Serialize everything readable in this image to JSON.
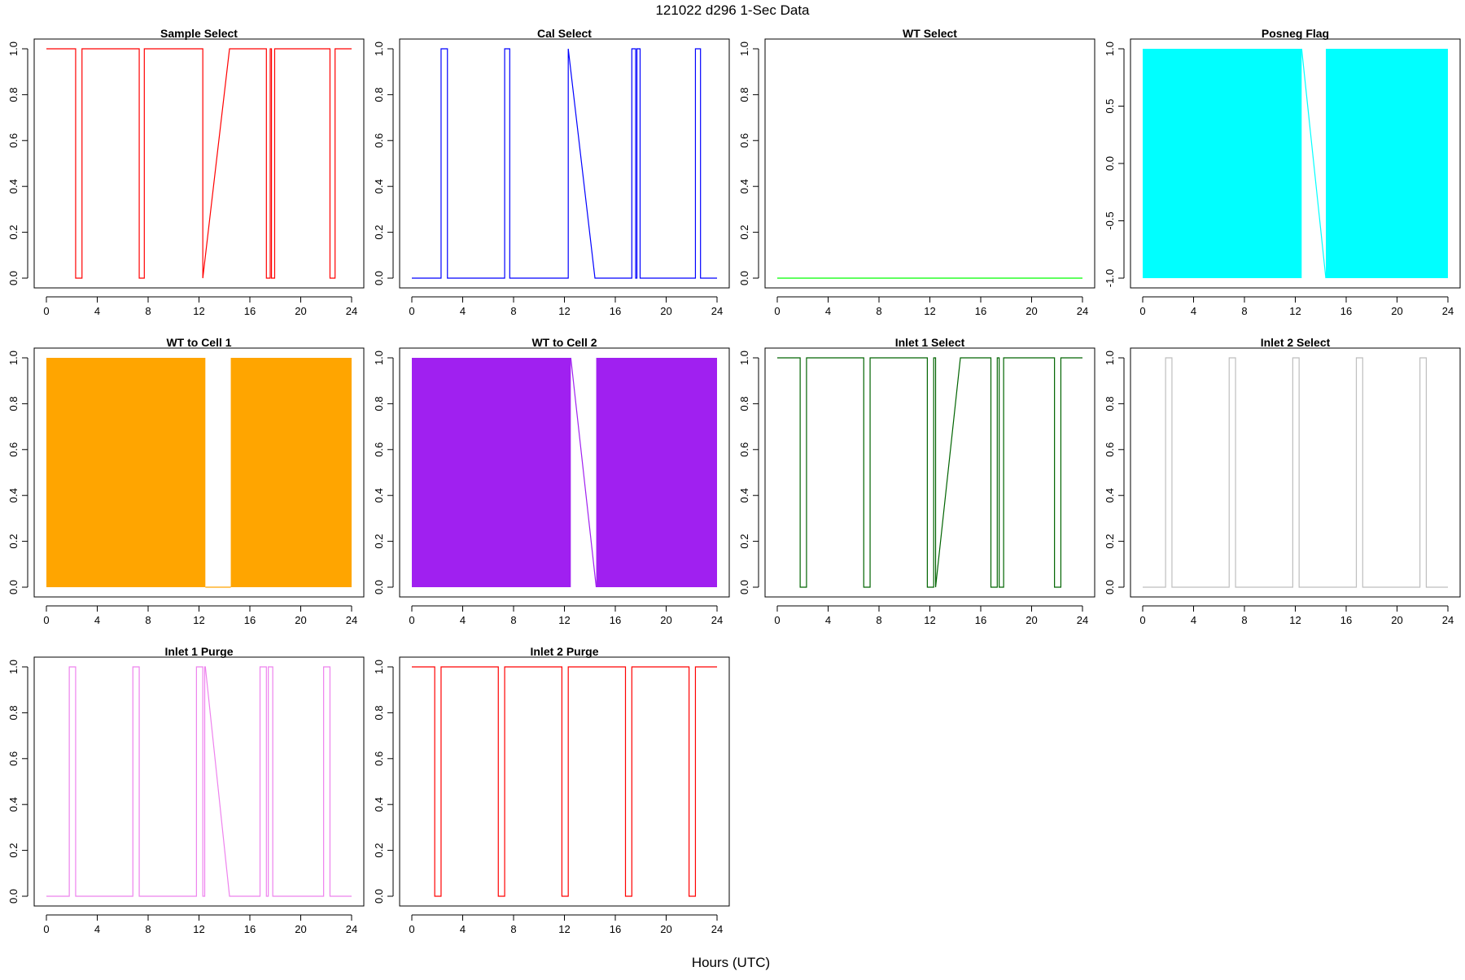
{
  "page": {
    "title": "121022   d296   1-Sec Data",
    "xlabel": "Hours (UTC)"
  },
  "chart_data": [
    {
      "type": "line",
      "title": "Sample Select",
      "color": "#ff0000",
      "xlim": [
        0,
        24
      ],
      "ylim": [
        0,
        1
      ],
      "xticks": [
        0,
        4,
        8,
        12,
        16,
        20,
        24
      ],
      "xtick_labels": [
        "0",
        "4",
        "8",
        "12",
        "16",
        "20",
        "24"
      ],
      "yticks": [
        0,
        0.2,
        0.4,
        0.6,
        0.8,
        1
      ],
      "ytick_labels": [
        "0.0",
        "0.2",
        "0.4",
        "0.6",
        "0.8",
        "1.0"
      ],
      "x": [
        0,
        2.3,
        2.3,
        2.8,
        2.8,
        7.3,
        7.3,
        7.7,
        7.7,
        12.3,
        12.3,
        14.4,
        17.3,
        17.3,
        17.6,
        17.6,
        17.7,
        17.7,
        17.95,
        17.95,
        22.3,
        22.3,
        22.7,
        22.7,
        24
      ],
      "y": [
        1,
        1,
        0,
        0,
        1,
        1,
        0,
        0,
        1,
        1,
        0,
        1,
        1,
        0,
        0,
        1,
        1,
        0,
        0,
        1,
        1,
        0,
        0,
        1,
        1
      ]
    },
    {
      "type": "line",
      "title": "Cal Select",
      "color": "#0000ff",
      "xlim": [
        0,
        24
      ],
      "ylim": [
        0,
        1
      ],
      "xticks": [
        0,
        4,
        8,
        12,
        16,
        20,
        24
      ],
      "xtick_labels": [
        "0",
        "4",
        "8",
        "12",
        "16",
        "20",
        "24"
      ],
      "yticks": [
        0,
        0.2,
        0.4,
        0.6,
        0.8,
        1
      ],
      "ytick_labels": [
        "0.0",
        "0.2",
        "0.4",
        "0.6",
        "0.8",
        "1.0"
      ],
      "x": [
        0,
        2.3,
        2.3,
        2.8,
        2.8,
        7.3,
        7.3,
        7.7,
        7.7,
        12.3,
        12.3,
        14.4,
        17.3,
        17.3,
        17.6,
        17.6,
        17.7,
        17.7,
        17.95,
        17.95,
        22.3,
        22.3,
        22.7,
        22.7,
        24
      ],
      "y": [
        0,
        0,
        1,
        1,
        0,
        0,
        1,
        1,
        0,
        0,
        1,
        0,
        0,
        1,
        1,
        0,
        0,
        1,
        1,
        0,
        0,
        1,
        1,
        0,
        0
      ]
    },
    {
      "type": "line",
      "title": "WT Select",
      "color": "#00ff00",
      "xlim": [
        0,
        24
      ],
      "ylim": [
        0,
        1
      ],
      "xticks": [
        0,
        4,
        8,
        12,
        16,
        20,
        24
      ],
      "xtick_labels": [
        "0",
        "4",
        "8",
        "12",
        "16",
        "20",
        "24"
      ],
      "yticks": [
        0,
        0.2,
        0.4,
        0.6,
        0.8,
        1
      ],
      "ytick_labels": [
        "0.0",
        "0.2",
        "0.4",
        "0.6",
        "0.8",
        "1.0"
      ],
      "x": [
        0,
        24
      ],
      "y": [
        0,
        0
      ]
    },
    {
      "type": "area",
      "title": "Posneg Flag",
      "color": "#00ffff",
      "xlim": [
        0,
        24
      ],
      "ylim": [
        -1,
        1
      ],
      "xticks": [
        0,
        4,
        8,
        12,
        16,
        20,
        24
      ],
      "xtick_labels": [
        "0",
        "4",
        "8",
        "12",
        "16",
        "20",
        "24"
      ],
      "yticks": [
        -1,
        -0.5,
        0,
        0.5,
        1
      ],
      "ytick_labels": [
        "-1.0",
        "-0.5",
        "0.0",
        "0.5",
        "1.0"
      ],
      "fill_ranges": [
        [
          0,
          12.5,
          -1,
          1
        ],
        [
          14.4,
          24,
          -1,
          1
        ]
      ],
      "x": [
        12.5,
        14.4
      ],
      "y": [
        1,
        -1
      ]
    },
    {
      "type": "area",
      "title": "WT to Cell 1",
      "color": "#ffa500",
      "xlim": [
        0,
        24
      ],
      "ylim": [
        0,
        1
      ],
      "xticks": [
        0,
        4,
        8,
        12,
        16,
        20,
        24
      ],
      "xtick_labels": [
        "0",
        "4",
        "8",
        "12",
        "16",
        "20",
        "24"
      ],
      "yticks": [
        0,
        0.2,
        0.4,
        0.6,
        0.8,
        1
      ],
      "ytick_labels": [
        "0.0",
        "0.2",
        "0.4",
        "0.6",
        "0.8",
        "1.0"
      ],
      "fill_ranges": [
        [
          0,
          12.5,
          0,
          1
        ],
        [
          14.5,
          24,
          0,
          1
        ]
      ],
      "x": [
        12.5,
        14.5
      ],
      "y": [
        0,
        0
      ]
    },
    {
      "type": "area",
      "title": "WT to Cell 2",
      "color": "#a020f0",
      "xlim": [
        0,
        24
      ],
      "ylim": [
        0,
        1
      ],
      "xticks": [
        0,
        4,
        8,
        12,
        16,
        20,
        24
      ],
      "xtick_labels": [
        "0",
        "4",
        "8",
        "12",
        "16",
        "20",
        "24"
      ],
      "yticks": [
        0,
        0.2,
        0.4,
        0.6,
        0.8,
        1
      ],
      "ytick_labels": [
        "0.0",
        "0.2",
        "0.4",
        "0.6",
        "0.8",
        "1.0"
      ],
      "fill_ranges": [
        [
          0,
          12.5,
          0,
          1
        ],
        [
          14.5,
          24,
          0,
          1
        ]
      ],
      "x": [
        12.5,
        14.5
      ],
      "y": [
        1,
        0
      ]
    },
    {
      "type": "line",
      "title": "Inlet 1 Select",
      "color": "#006400",
      "xlim": [
        0,
        24
      ],
      "ylim": [
        0,
        1
      ],
      "xticks": [
        0,
        4,
        8,
        12,
        16,
        20,
        24
      ],
      "xtick_labels": [
        "0",
        "4",
        "8",
        "12",
        "16",
        "20",
        "24"
      ],
      "yticks": [
        0,
        0.2,
        0.4,
        0.6,
        0.8,
        1
      ],
      "ytick_labels": [
        "0.0",
        "0.2",
        "0.4",
        "0.6",
        "0.8",
        "1.0"
      ],
      "x": [
        0,
        1.8,
        1.8,
        2.3,
        2.3,
        6.8,
        6.8,
        7.3,
        7.3,
        11.8,
        11.8,
        12.3,
        12.3,
        12.45,
        12.45,
        14.4,
        16.8,
        16.8,
        17.3,
        17.3,
        17.45,
        17.45,
        17.8,
        17.8,
        21.8,
        21.8,
        22.3,
        22.3,
        24
      ],
      "y": [
        1,
        1,
        0,
        0,
        1,
        1,
        0,
        0,
        1,
        1,
        0,
        0,
        1,
        1,
        0,
        1,
        1,
        0,
        0,
        1,
        1,
        0,
        0,
        1,
        1,
        0,
        0,
        1,
        1
      ]
    },
    {
      "type": "line",
      "title": "Inlet 2 Select",
      "color": "#bebebe",
      "xlim": [
        0,
        24
      ],
      "ylim": [
        0,
        1
      ],
      "xticks": [
        0,
        4,
        8,
        12,
        16,
        20,
        24
      ],
      "xtick_labels": [
        "0",
        "4",
        "8",
        "12",
        "16",
        "20",
        "24"
      ],
      "yticks": [
        0,
        0.2,
        0.4,
        0.6,
        0.8,
        1
      ],
      "ytick_labels": [
        "0.0",
        "0.2",
        "0.4",
        "0.6",
        "0.8",
        "1.0"
      ],
      "x": [
        0,
        1.8,
        1.8,
        2.3,
        2.3,
        6.8,
        6.8,
        7.3,
        7.3,
        11.8,
        11.8,
        12.3,
        12.3,
        16.8,
        16.8,
        17.3,
        17.3,
        21.8,
        21.8,
        22.3,
        22.3,
        24
      ],
      "y": [
        0,
        0,
        1,
        1,
        0,
        0,
        1,
        1,
        0,
        0,
        1,
        1,
        0,
        0,
        1,
        1,
        0,
        0,
        1,
        1,
        0,
        0
      ]
    },
    {
      "type": "line",
      "title": "Inlet 1 Purge",
      "color": "#ee82ee",
      "xlim": [
        0,
        24
      ],
      "ylim": [
        0,
        1
      ],
      "xticks": [
        0,
        4,
        8,
        12,
        16,
        20,
        24
      ],
      "xtick_labels": [
        "0",
        "4",
        "8",
        "12",
        "16",
        "20",
        "24"
      ],
      "yticks": [
        0,
        0.2,
        0.4,
        0.6,
        0.8,
        1
      ],
      "ytick_labels": [
        "0.0",
        "0.2",
        "0.4",
        "0.6",
        "0.8",
        "1.0"
      ],
      "x": [
        0,
        1.8,
        1.8,
        2.3,
        2.3,
        6.8,
        6.8,
        7.3,
        7.3,
        11.8,
        11.8,
        12.3,
        12.3,
        12.45,
        12.45,
        12.5,
        14.4,
        16.8,
        16.8,
        17.3,
        17.3,
        17.45,
        17.45,
        17.8,
        17.8,
        21.8,
        21.8,
        22.3,
        22.3,
        24
      ],
      "y": [
        0,
        0,
        1,
        1,
        0,
        0,
        1,
        1,
        0,
        0,
        1,
        1,
        0,
        0,
        1,
        1,
        0,
        0,
        1,
        1,
        0,
        0,
        1,
        1,
        0,
        0,
        1,
        1,
        0,
        0
      ]
    },
    {
      "type": "line",
      "title": "Inlet 2 Purge",
      "color": "#ff0000",
      "xlim": [
        0,
        24
      ],
      "ylim": [
        0,
        1
      ],
      "xticks": [
        0,
        4,
        8,
        12,
        16,
        20,
        24
      ],
      "xtick_labels": [
        "0",
        "4",
        "8",
        "12",
        "16",
        "20",
        "24"
      ],
      "yticks": [
        0,
        0.2,
        0.4,
        0.6,
        0.8,
        1
      ],
      "ytick_labels": [
        "0.0",
        "0.2",
        "0.4",
        "0.6",
        "0.8",
        "1.0"
      ],
      "x": [
        0,
        1.8,
        1.8,
        2.3,
        2.3,
        6.8,
        6.8,
        7.3,
        7.3,
        11.8,
        11.8,
        12.3,
        12.3,
        16.8,
        16.8,
        17.3,
        17.3,
        21.8,
        21.8,
        22.3,
        22.3,
        24
      ],
      "y": [
        1,
        1,
        0,
        0,
        1,
        1,
        0,
        0,
        1,
        1,
        0,
        0,
        1,
        1,
        0,
        0,
        1,
        1,
        0,
        0,
        1,
        1
      ]
    }
  ]
}
